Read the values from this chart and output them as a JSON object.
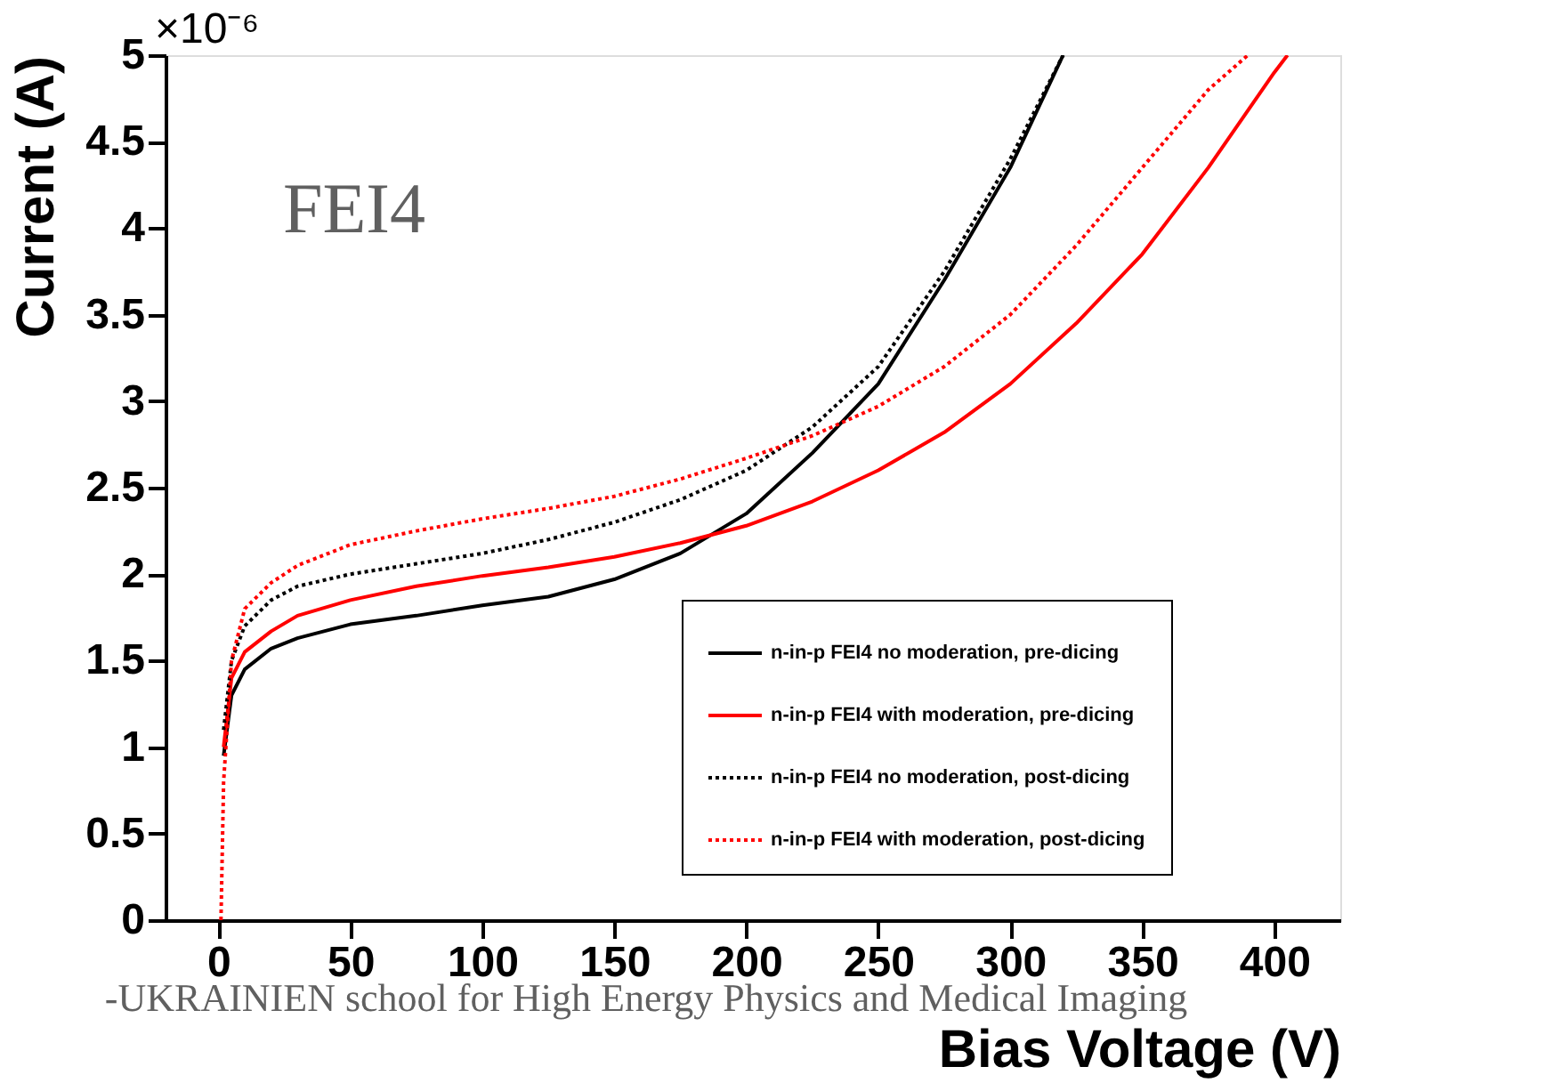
{
  "chart_data": {
    "type": "line",
    "xlabel": "Bias Voltage (V)",
    "ylabel": "Current (A)",
    "xlim": [
      -20,
      425
    ],
    "xticks": [
      0,
      50,
      100,
      150,
      200,
      250,
      300,
      350,
      400
    ],
    "ylim": [
      0,
      5
    ],
    "yticks": [
      0,
      0.5,
      1,
      1.5,
      2,
      2.5,
      3,
      3.5,
      4,
      4.5,
      5
    ],
    "grid": false,
    "legend": "bottom right",
    "marker": "none",
    "annotations": [
      "FEI4",
      "×10⁻⁶",
      "-UKRAINIEN school for High Energy Physics and Medical Imaging"
    ],
    "series": [
      {
        "name": "n-in-p FEI4 no moderation, pre-dicing",
        "color": "#000000",
        "line_style": "solid",
        "x": [
          2,
          5,
          10,
          20,
          30,
          50,
          75,
          100,
          125,
          150,
          175,
          200,
          225,
          250,
          275,
          300,
          320
        ],
        "values": [
          0.95,
          1.3,
          1.45,
          1.57,
          1.63,
          1.71,
          1.76,
          1.82,
          1.87,
          1.97,
          2.12,
          2.35,
          2.7,
          3.1,
          3.7,
          4.35,
          5.0
        ]
      },
      {
        "name": "n-in-p FEI4 with moderation, pre-dicing",
        "color": "#ff0000",
        "line_style": "solid",
        "x": [
          2,
          5,
          10,
          20,
          30,
          50,
          75,
          100,
          125,
          150,
          175,
          200,
          225,
          250,
          275,
          300,
          325,
          350,
          375,
          400,
          405
        ],
        "values": [
          1.0,
          1.4,
          1.55,
          1.67,
          1.76,
          1.85,
          1.93,
          1.99,
          2.04,
          2.1,
          2.18,
          2.28,
          2.42,
          2.6,
          2.82,
          3.1,
          3.45,
          3.85,
          4.35,
          4.9,
          5.0
        ]
      },
      {
        "name": "n-in-p FEI4 no moderation, post-dicing",
        "color": "#000000",
        "line_style": "dotted",
        "x": [
          2,
          5,
          10,
          20,
          30,
          50,
          75,
          100,
          125,
          150,
          175,
          200,
          225,
          250,
          275,
          300,
          320
        ],
        "values": [
          1.1,
          1.5,
          1.7,
          1.85,
          1.93,
          2.0,
          2.06,
          2.12,
          2.2,
          2.3,
          2.43,
          2.6,
          2.85,
          3.2,
          3.75,
          4.4,
          5.0
        ]
      },
      {
        "name": "n-in-p FEI4 with moderation, post-dicing",
        "color": "#ff0000",
        "line_style": "dotted",
        "x": [
          1,
          2,
          5,
          10,
          20,
          30,
          50,
          75,
          100,
          125,
          150,
          175,
          200,
          225,
          250,
          275,
          300,
          325,
          350,
          375,
          390
        ],
        "values": [
          0.0,
          0.8,
          1.5,
          1.8,
          1.95,
          2.05,
          2.17,
          2.25,
          2.32,
          2.38,
          2.45,
          2.55,
          2.67,
          2.8,
          2.97,
          3.2,
          3.5,
          3.9,
          4.35,
          4.8,
          5.0
        ]
      }
    ]
  }
}
